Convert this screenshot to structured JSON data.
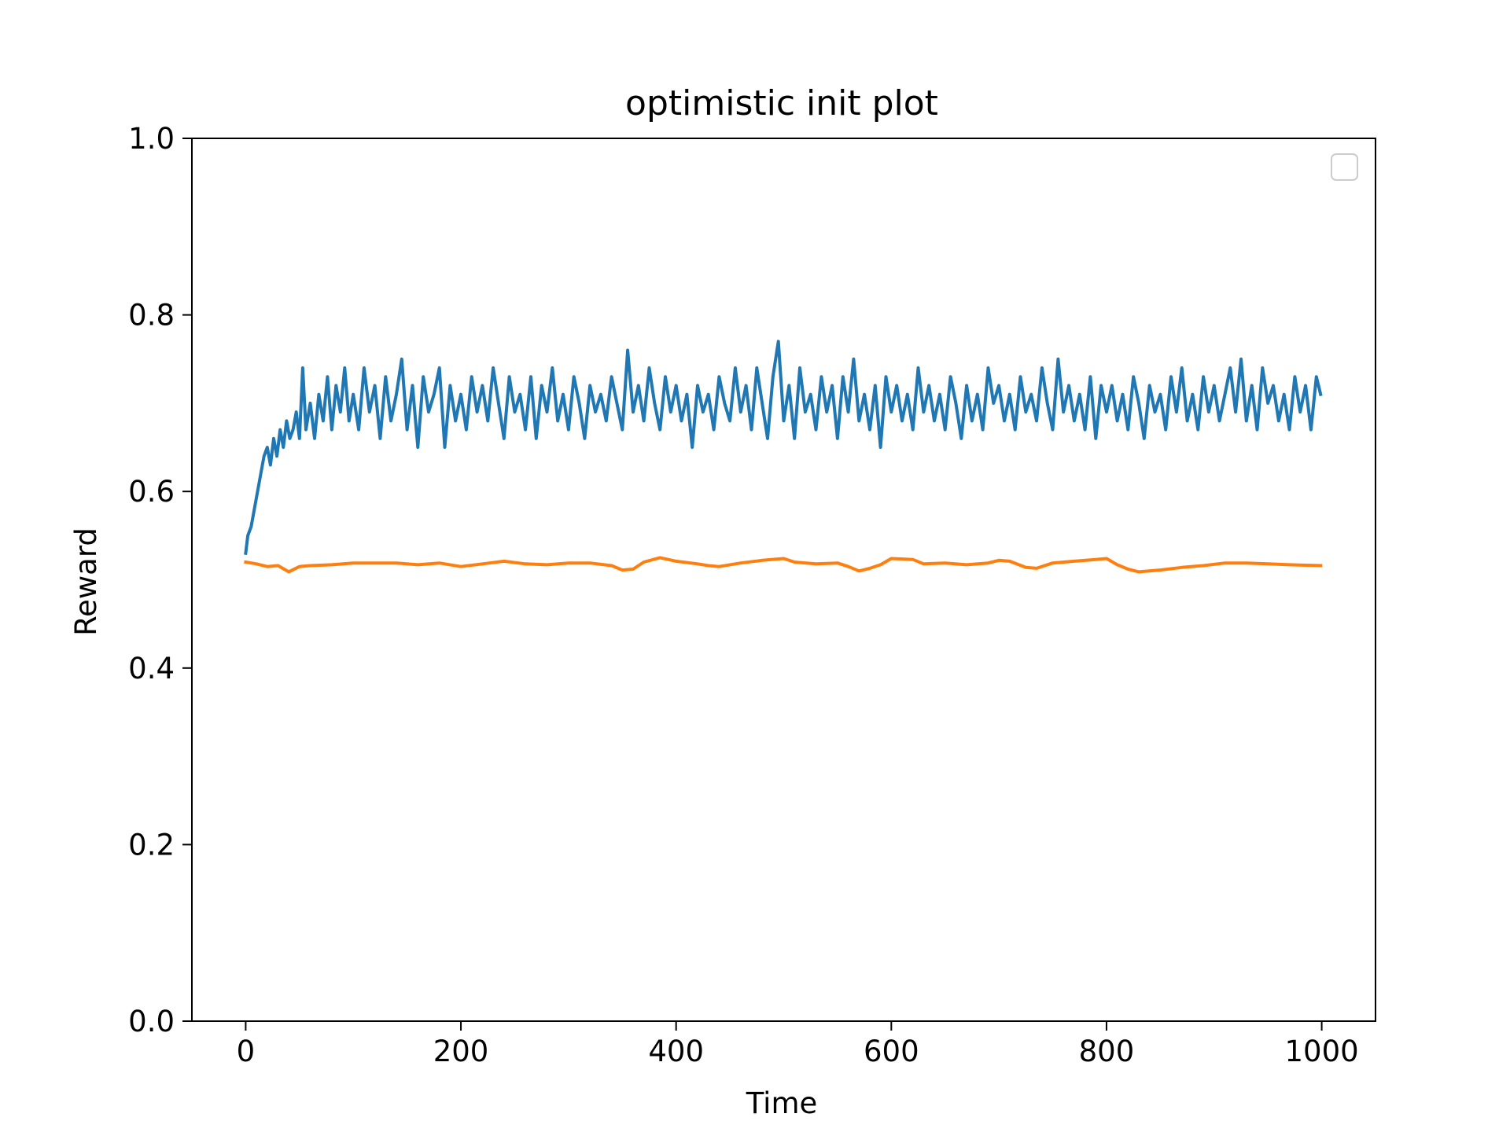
{
  "chart_data": {
    "type": "line",
    "title": "optimistic init plot",
    "xlabel": "Time",
    "ylabel": "Reward",
    "xlim": [
      -50,
      1050
    ],
    "ylim": [
      0.0,
      1.0
    ],
    "x_ticks": [
      0,
      200,
      400,
      600,
      800,
      1000
    ],
    "x_tick_labels": [
      "0",
      "200",
      "400",
      "600",
      "800",
      "1000"
    ],
    "y_ticks": [
      0.0,
      0.2,
      0.4,
      0.6,
      0.8,
      1.0
    ],
    "y_tick_labels": [
      "0.0",
      "0.2",
      "0.4",
      "0.6",
      "0.8",
      "1.0"
    ],
    "grid": false,
    "legend": {
      "placement": "top-right",
      "entries": []
    },
    "series": [
      {
        "color": "#1f77b4",
        "points": [
          [
            0,
            0.53
          ],
          [
            2,
            0.55
          ],
          [
            5,
            0.56
          ],
          [
            8,
            0.58
          ],
          [
            11,
            0.6
          ],
          [
            14,
            0.62
          ],
          [
            17,
            0.64
          ],
          [
            20,
            0.65
          ],
          [
            23,
            0.63
          ],
          [
            26,
            0.66
          ],
          [
            29,
            0.64
          ],
          [
            32,
            0.67
          ],
          [
            35,
            0.65
          ],
          [
            38,
            0.68
          ],
          [
            41,
            0.66
          ],
          [
            44,
            0.67
          ],
          [
            47,
            0.69
          ],
          [
            50,
            0.66
          ],
          [
            53,
            0.74
          ],
          [
            56,
            0.67
          ],
          [
            60,
            0.7
          ],
          [
            64,
            0.66
          ],
          [
            68,
            0.71
          ],
          [
            72,
            0.68
          ],
          [
            76,
            0.73
          ],
          [
            80,
            0.67
          ],
          [
            84,
            0.72
          ],
          [
            88,
            0.69
          ],
          [
            92,
            0.74
          ],
          [
            96,
            0.68
          ],
          [
            100,
            0.71
          ],
          [
            105,
            0.67
          ],
          [
            110,
            0.74
          ],
          [
            115,
            0.69
          ],
          [
            120,
            0.72
          ],
          [
            125,
            0.66
          ],
          [
            130,
            0.73
          ],
          [
            135,
            0.68
          ],
          [
            140,
            0.71
          ],
          [
            145,
            0.75
          ],
          [
            150,
            0.67
          ],
          [
            155,
            0.72
          ],
          [
            160,
            0.65
          ],
          [
            165,
            0.73
          ],
          [
            170,
            0.69
          ],
          [
            175,
            0.71
          ],
          [
            180,
            0.74
          ],
          [
            185,
            0.65
          ],
          [
            190,
            0.72
          ],
          [
            195,
            0.68
          ],
          [
            200,
            0.71
          ],
          [
            205,
            0.67
          ],
          [
            210,
            0.73
          ],
          [
            215,
            0.69
          ],
          [
            220,
            0.72
          ],
          [
            225,
            0.68
          ],
          [
            230,
            0.74
          ],
          [
            235,
            0.7
          ],
          [
            240,
            0.66
          ],
          [
            245,
            0.73
          ],
          [
            250,
            0.69
          ],
          [
            255,
            0.71
          ],
          [
            260,
            0.67
          ],
          [
            265,
            0.73
          ],
          [
            270,
            0.66
          ],
          [
            275,
            0.72
          ],
          [
            280,
            0.69
          ],
          [
            285,
            0.74
          ],
          [
            290,
            0.68
          ],
          [
            295,
            0.71
          ],
          [
            300,
            0.67
          ],
          [
            305,
            0.73
          ],
          [
            310,
            0.7
          ],
          [
            315,
            0.66
          ],
          [
            320,
            0.72
          ],
          [
            325,
            0.69
          ],
          [
            330,
            0.71
          ],
          [
            335,
            0.68
          ],
          [
            340,
            0.73
          ],
          [
            345,
            0.7
          ],
          [
            350,
            0.67
          ],
          [
            355,
            0.76
          ],
          [
            360,
            0.69
          ],
          [
            365,
            0.72
          ],
          [
            370,
            0.68
          ],
          [
            375,
            0.74
          ],
          [
            380,
            0.7
          ],
          [
            385,
            0.67
          ],
          [
            390,
            0.73
          ],
          [
            395,
            0.69
          ],
          [
            400,
            0.72
          ],
          [
            405,
            0.68
          ],
          [
            410,
            0.71
          ],
          [
            415,
            0.65
          ],
          [
            420,
            0.72
          ],
          [
            425,
            0.69
          ],
          [
            430,
            0.71
          ],
          [
            435,
            0.67
          ],
          [
            440,
            0.73
          ],
          [
            445,
            0.7
          ],
          [
            450,
            0.68
          ],
          [
            455,
            0.74
          ],
          [
            460,
            0.69
          ],
          [
            465,
            0.72
          ],
          [
            470,
            0.67
          ],
          [
            475,
            0.74
          ],
          [
            480,
            0.7
          ],
          [
            485,
            0.66
          ],
          [
            490,
            0.73
          ],
          [
            495,
            0.77
          ],
          [
            500,
            0.68
          ],
          [
            505,
            0.72
          ],
          [
            510,
            0.66
          ],
          [
            515,
            0.74
          ],
          [
            520,
            0.69
          ],
          [
            525,
            0.71
          ],
          [
            530,
            0.67
          ],
          [
            535,
            0.73
          ],
          [
            540,
            0.69
          ],
          [
            545,
            0.72
          ],
          [
            550,
            0.66
          ],
          [
            555,
            0.73
          ],
          [
            560,
            0.69
          ],
          [
            565,
            0.75
          ],
          [
            570,
            0.68
          ],
          [
            575,
            0.71
          ],
          [
            580,
            0.67
          ],
          [
            585,
            0.72
          ],
          [
            590,
            0.65
          ],
          [
            595,
            0.73
          ],
          [
            600,
            0.69
          ],
          [
            605,
            0.72
          ],
          [
            610,
            0.68
          ],
          [
            615,
            0.71
          ],
          [
            620,
            0.67
          ],
          [
            625,
            0.74
          ],
          [
            630,
            0.69
          ],
          [
            635,
            0.72
          ],
          [
            640,
            0.68
          ],
          [
            645,
            0.71
          ],
          [
            650,
            0.67
          ],
          [
            655,
            0.73
          ],
          [
            660,
            0.7
          ],
          [
            665,
            0.66
          ],
          [
            670,
            0.72
          ],
          [
            675,
            0.68
          ],
          [
            680,
            0.71
          ],
          [
            685,
            0.67
          ],
          [
            690,
            0.74
          ],
          [
            695,
            0.7
          ],
          [
            700,
            0.72
          ],
          [
            705,
            0.68
          ],
          [
            710,
            0.71
          ],
          [
            715,
            0.67
          ],
          [
            720,
            0.73
          ],
          [
            725,
            0.69
          ],
          [
            730,
            0.71
          ],
          [
            735,
            0.68
          ],
          [
            740,
            0.74
          ],
          [
            745,
            0.7
          ],
          [
            750,
            0.67
          ],
          [
            755,
            0.75
          ],
          [
            760,
            0.69
          ],
          [
            765,
            0.72
          ],
          [
            770,
            0.68
          ],
          [
            775,
            0.71
          ],
          [
            780,
            0.67
          ],
          [
            785,
            0.73
          ],
          [
            790,
            0.66
          ],
          [
            795,
            0.72
          ],
          [
            800,
            0.69
          ],
          [
            805,
            0.72
          ],
          [
            810,
            0.68
          ],
          [
            815,
            0.71
          ],
          [
            820,
            0.67
          ],
          [
            825,
            0.73
          ],
          [
            830,
            0.7
          ],
          [
            835,
            0.66
          ],
          [
            840,
            0.72
          ],
          [
            845,
            0.69
          ],
          [
            850,
            0.71
          ],
          [
            855,
            0.67
          ],
          [
            860,
            0.73
          ],
          [
            865,
            0.69
          ],
          [
            870,
            0.74
          ],
          [
            875,
            0.68
          ],
          [
            880,
            0.71
          ],
          [
            885,
            0.67
          ],
          [
            890,
            0.73
          ],
          [
            895,
            0.69
          ],
          [
            900,
            0.72
          ],
          [
            905,
            0.68
          ],
          [
            910,
            0.71
          ],
          [
            915,
            0.74
          ],
          [
            920,
            0.69
          ],
          [
            925,
            0.75
          ],
          [
            930,
            0.68
          ],
          [
            935,
            0.72
          ],
          [
            940,
            0.67
          ],
          [
            945,
            0.74
          ],
          [
            950,
            0.7
          ],
          [
            955,
            0.72
          ],
          [
            960,
            0.68
          ],
          [
            965,
            0.71
          ],
          [
            970,
            0.67
          ],
          [
            975,
            0.73
          ],
          [
            980,
            0.69
          ],
          [
            985,
            0.72
          ],
          [
            990,
            0.67
          ],
          [
            995,
            0.73
          ],
          [
            999,
            0.71
          ]
        ]
      },
      {
        "color": "#ff7f0e",
        "points": [
          [
            0,
            0.52
          ],
          [
            10,
            0.518
          ],
          [
            20,
            0.515
          ],
          [
            30,
            0.516
          ],
          [
            40,
            0.509
          ],
          [
            50,
            0.515
          ],
          [
            60,
            0.516
          ],
          [
            80,
            0.517
          ],
          [
            100,
            0.519
          ],
          [
            120,
            0.519
          ],
          [
            140,
            0.519
          ],
          [
            160,
            0.517
          ],
          [
            180,
            0.519
          ],
          [
            200,
            0.515
          ],
          [
            220,
            0.518
          ],
          [
            240,
            0.521
          ],
          [
            260,
            0.518
          ],
          [
            280,
            0.517
          ],
          [
            300,
            0.519
          ],
          [
            320,
            0.519
          ],
          [
            340,
            0.516
          ],
          [
            350,
            0.511
          ],
          [
            360,
            0.512
          ],
          [
            370,
            0.52
          ],
          [
            385,
            0.525
          ],
          [
            400,
            0.521
          ],
          [
            420,
            0.518
          ],
          [
            430,
            0.516
          ],
          [
            440,
            0.515
          ],
          [
            460,
            0.519
          ],
          [
            480,
            0.522
          ],
          [
            500,
            0.524
          ],
          [
            510,
            0.52
          ],
          [
            530,
            0.518
          ],
          [
            550,
            0.519
          ],
          [
            560,
            0.515
          ],
          [
            570,
            0.51
          ],
          [
            580,
            0.513
          ],
          [
            590,
            0.517
          ],
          [
            600,
            0.524
          ],
          [
            620,
            0.523
          ],
          [
            630,
            0.518
          ],
          [
            650,
            0.519
          ],
          [
            670,
            0.517
          ],
          [
            690,
            0.519
          ],
          [
            700,
            0.522
          ],
          [
            710,
            0.521
          ],
          [
            725,
            0.514
          ],
          [
            735,
            0.513
          ],
          [
            750,
            0.519
          ],
          [
            770,
            0.521
          ],
          [
            790,
            0.523
          ],
          [
            800,
            0.524
          ],
          [
            810,
            0.517
          ],
          [
            820,
            0.512
          ],
          [
            830,
            0.509
          ],
          [
            850,
            0.511
          ],
          [
            870,
            0.514
          ],
          [
            890,
            0.516
          ],
          [
            910,
            0.519
          ],
          [
            930,
            0.519
          ],
          [
            950,
            0.518
          ],
          [
            970,
            0.517
          ],
          [
            999,
            0.516
          ]
        ]
      }
    ]
  }
}
